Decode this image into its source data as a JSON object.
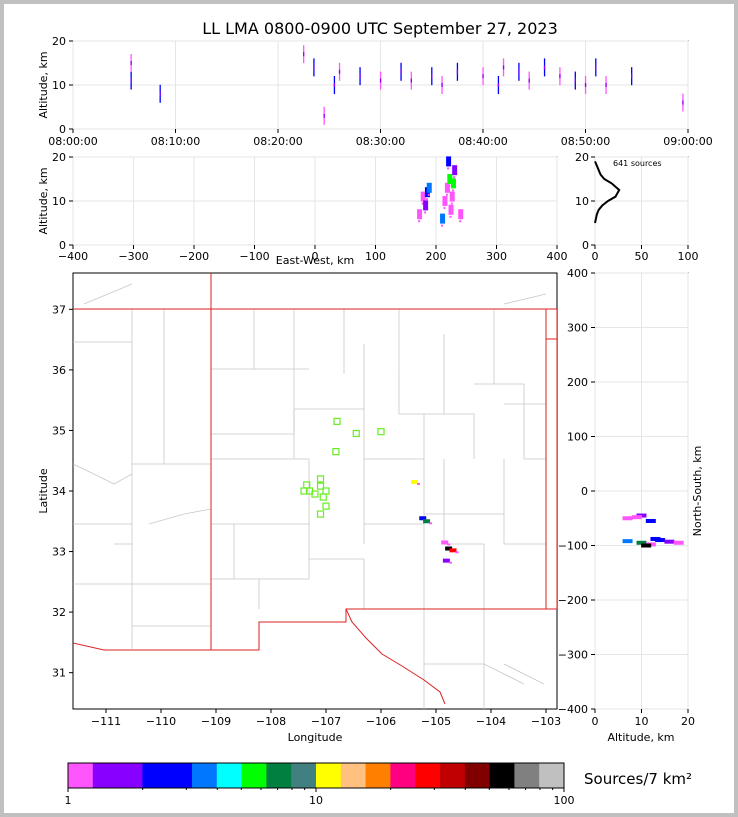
{
  "title": "LL LMA 0800-0900 UTC September 27, 2023",
  "time_panel": {
    "ylabel": "Altitude, km",
    "xticks": [
      "08:00:00",
      "08:10:00",
      "08:20:00",
      "08:30:00",
      "08:40:00",
      "08:50:00",
      "09:00:00"
    ],
    "yticks": [
      "0",
      "10",
      "20"
    ]
  },
  "ew_panel": {
    "ylabel": "Altitude, km",
    "xlabel": "East-West, km",
    "xticks": [
      "−400",
      "−300",
      "−200",
      "−100",
      "0",
      "100",
      "200",
      "300",
      "400"
    ],
    "yticks": [
      "0",
      "10",
      "20"
    ]
  },
  "hist_panel": {
    "annotation": "641 sources",
    "xticks": [
      "0",
      "50",
      "100"
    ],
    "yticks": [
      "0",
      "10",
      "20"
    ]
  },
  "map_panel": {
    "xlabel": "Longitude",
    "ylabel": "Latitude",
    "xticks": [
      "−111",
      "−110",
      "−109",
      "−108",
      "−107",
      "−106",
      "−105",
      "−104",
      "−103"
    ],
    "yticks": [
      "31",
      "32",
      "33",
      "34",
      "35",
      "36",
      "37"
    ]
  },
  "ns_panel": {
    "xlabel": "Altitude, km",
    "ylabel": "North-South, km",
    "xticks": [
      "0",
      "10",
      "20"
    ],
    "yticks": [
      "400",
      "300",
      "200",
      "100",
      "0",
      "−100",
      "−200",
      "−300",
      "−400"
    ]
  },
  "colorbar": {
    "label": "Sources/7 km²",
    "ticks": [
      "1",
      "10",
      "100"
    ],
    "colors": [
      "#ff55ff",
      "#8800ff",
      "#0000ff",
      "#0077ff",
      "#00ffff",
      "#00ff00",
      "#008040",
      "#408080",
      "#ffff00",
      "#ffc080",
      "#ff8000",
      "#ff0080",
      "#ff0000",
      "#c00000",
      "#800000",
      "#000000",
      "#808080",
      "#c0c0c0",
      "#ffffff"
    ]
  },
  "chart_data": [
    {
      "type": "scatter",
      "panel": "altitude-vs-time",
      "title": "LL LMA 0800-0900 UTC September 27, 2023",
      "ylabel": "Altitude, km",
      "xlim": [
        "08:00:00",
        "09:00:00"
      ],
      "ylim": [
        0,
        20
      ],
      "series": [
        {
          "name": "",
          "points": [
            [
              "08:05:40",
              11
            ],
            [
              "08:05:40",
              15
            ],
            [
              "08:08:30",
              8
            ],
            [
              "08:22:30",
              17
            ],
            [
              "08:23:30",
              14
            ],
            [
              "08:24:30",
              3
            ],
            [
              "08:25:30",
              10
            ],
            [
              "08:26:00",
              13
            ],
            [
              "08:28:00",
              12
            ],
            [
              "08:30:00",
              11
            ],
            [
              "08:32:00",
              13
            ],
            [
              "08:33:00",
              11
            ],
            [
              "08:35:00",
              12
            ],
            [
              "08:36:00",
              10
            ],
            [
              "08:37:30",
              13
            ],
            [
              "08:40:00",
              12
            ],
            [
              "08:41:30",
              10
            ],
            [
              "08:42:00",
              14
            ],
            [
              "08:43:30",
              13
            ],
            [
              "08:44:30",
              11
            ],
            [
              "08:46:00",
              14
            ],
            [
              "08:47:30",
              12
            ],
            [
              "08:49:00",
              11
            ],
            [
              "08:50:00",
              10
            ],
            [
              "08:51:00",
              14
            ],
            [
              "08:52:00",
              10
            ],
            [
              "08:54:30",
              12
            ],
            [
              "08:59:30",
              6
            ]
          ]
        }
      ]
    },
    {
      "type": "scatter",
      "panel": "altitude-vs-east-west",
      "xlabel": "East-West, km",
      "ylabel": "Altitude, km",
      "xlim": [
        -400,
        400
      ],
      "ylim": [
        0,
        20
      ],
      "series": [
        {
          "name": "",
          "points": [
            [
              178,
              11
            ],
            [
              182,
              9
            ],
            [
              185,
              12
            ],
            [
              172,
              7
            ],
            [
              188,
              13
            ],
            [
              218,
              13
            ],
            [
              222,
              15
            ],
            [
              226,
              11
            ],
            [
              214,
              10
            ],
            [
              230,
              17
            ],
            [
              220,
              19
            ],
            [
              224,
              8
            ],
            [
              210,
              6
            ],
            [
              240,
              7
            ],
            [
              228,
              14
            ]
          ]
        }
      ]
    },
    {
      "type": "line",
      "panel": "source-histogram",
      "annotation": "641 sources",
      "xlim": [
        0,
        100
      ],
      "ylim": [
        0,
        20
      ],
      "x": [
        0,
        2,
        4,
        8,
        14,
        22,
        26,
        18,
        10,
        6,
        4,
        2,
        0
      ],
      "y": [
        5,
        7,
        8,
        9,
        10,
        11,
        12.5,
        14,
        15,
        16,
        17,
        18,
        19
      ]
    },
    {
      "type": "scatter",
      "panel": "plan-view-map",
      "xlabel": "Longitude",
      "ylabel": "Latitude",
      "xlim": [
        -111.6,
        -102.8
      ],
      "ylim": [
        30.4,
        37.6
      ],
      "series": [
        {
          "name": "",
          "points": [
            [
              -105.25,
              33.55
            ],
            [
              -105.18,
              33.5
            ],
            [
              -104.85,
              33.15
            ],
            [
              -104.78,
              33.05
            ],
            [
              -104.7,
              33.02
            ],
            [
              -104.82,
              32.85
            ],
            [
              -105.4,
              34.15
            ]
          ]
        },
        {
          "name": "stations",
          "points": [
            [
              -106.8,
              35.15
            ],
            [
              -106.45,
              34.95
            ],
            [
              -106.0,
              34.98
            ],
            [
              -106.82,
              34.65
            ],
            [
              -107.0,
              34.0
            ],
            [
              -107.1,
              34.2
            ],
            [
              -107.1,
              34.08
            ],
            [
              -107.2,
              33.95
            ],
            [
              -107.3,
              34.0
            ],
            [
              -107.4,
              34.0
            ],
            [
              -107.35,
              34.1
            ],
            [
              -107.05,
              33.9
            ],
            [
              -107.0,
              33.75
            ],
            [
              -107.1,
              33.62
            ]
          ]
        }
      ]
    },
    {
      "type": "scatter",
      "panel": "north-south-vs-altitude",
      "xlabel": "Altitude, km",
      "ylabel": "North-South, km",
      "xlim": [
        0,
        20
      ],
      "ylim": [
        -400,
        400
      ],
      "series": [
        {
          "name": "",
          "points": [
            [
              7,
              -50
            ],
            [
              10,
              -45
            ],
            [
              12,
              -55
            ],
            [
              9,
              -48
            ],
            [
              7,
              -92
            ],
            [
              10,
              -95
            ],
            [
              12,
              -98
            ],
            [
              14,
              -90
            ],
            [
              16,
              -93
            ],
            [
              18,
              -95
            ],
            [
              11,
              -100
            ],
            [
              13,
              -88
            ]
          ]
        }
      ]
    }
  ]
}
